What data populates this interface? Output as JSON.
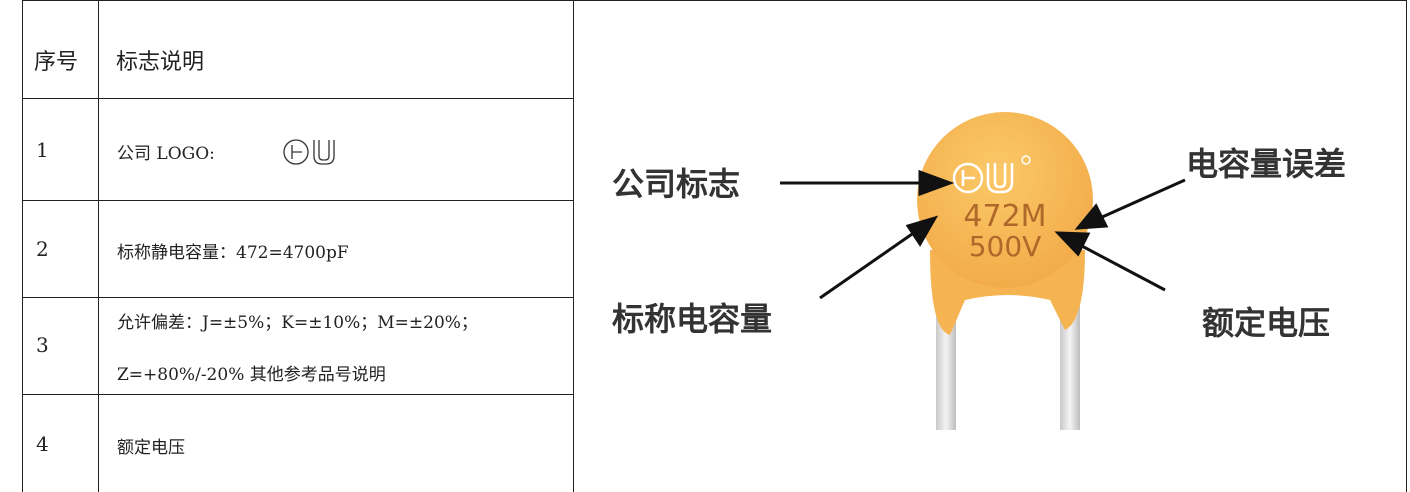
{
  "table": {
    "header": [
      "序号",
      "标志说明"
    ],
    "rows": [
      {
        "no": "1",
        "lines": [
          "公司 LOGO:"
        ]
      },
      {
        "no": "2",
        "lines": [
          "标称静电容量：472=4700pF"
        ]
      },
      {
        "no": "3",
        "lines": [
          "允许偏差：J=±5%；K=±10%；M=±20%；",
          "Z=+80%/-20%  其他参考品号说明"
        ]
      },
      {
        "no": "4",
        "lines": [
          "额定电压"
        ]
      }
    ]
  },
  "figure": {
    "labels": [
      "公司标志",
      "电容量误差",
      "标称电容量",
      "额定电压"
    ],
    "marking": [
      "472M",
      "500V"
    ]
  }
}
